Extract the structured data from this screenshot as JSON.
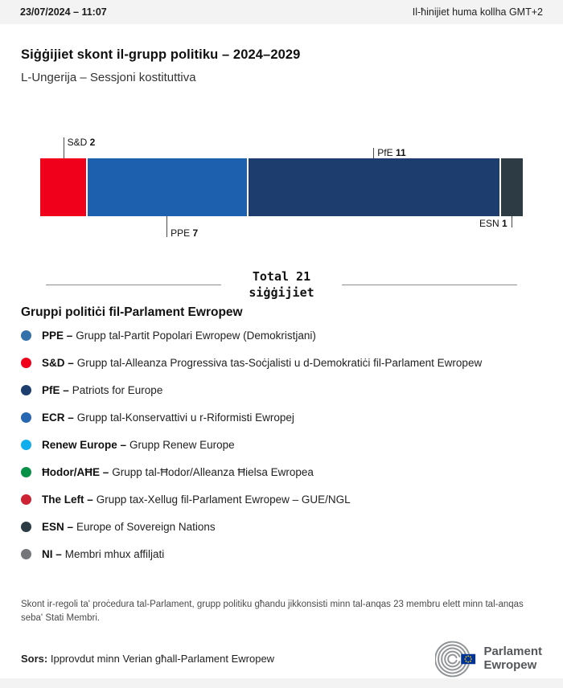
{
  "header": {
    "datetime": "23/07/2024 – 11:07",
    "timezone_note": "Il-ħinijiet huma kollha GMT+2"
  },
  "title": "Siġġijiet skont il-grupp politiku – 2024–2029",
  "subtitle": "L-Ungerija – Sessjoni kostituttiva",
  "chart_data": {
    "type": "bar",
    "stacked": true,
    "orientation": "horizontal",
    "title": "Siġġijiet skont il-grupp politiku – 2024–2029",
    "total": 21,
    "total_label": "Total 21",
    "total_sublabel": "siġġijiet",
    "categories": [
      "S&D",
      "PPE",
      "PfE",
      "ESN"
    ],
    "values": [
      2,
      7,
      11,
      1
    ],
    "segments": [
      {
        "group": "S&D",
        "seats": 2,
        "color": "#f0001b",
        "label_side": "above",
        "tick": 26,
        "align": "left"
      },
      {
        "group": "PPE",
        "seats": 7,
        "color": "#1c60ae",
        "label_side": "below",
        "tick": 26,
        "align": "left"
      },
      {
        "group": "PfE",
        "seats": 11,
        "color": "#1d3d6f",
        "label_side": "above",
        "tick": 13,
        "align": "left"
      },
      {
        "group": "ESN",
        "seats": 1,
        "color": "#2c3b44",
        "label_side": "below",
        "tick": 14,
        "align": "right"
      }
    ]
  },
  "legend": {
    "heading": "Gruppi politiċi fil-Parlament Ewropew",
    "items": [
      {
        "abbr": "PPE –",
        "name": "Grupp tal-Partit Popolari Ewropew (Demokristjani)",
        "color": "#3470a9"
      },
      {
        "abbr": "S&D –",
        "name": "Grupp tal-Alleanza Progressiva tas-Soċjalisti u d-Demokratiċi fil-Parlament Ewropew",
        "color": "#f0001b"
      },
      {
        "abbr": "PfE –",
        "name": "Patriots for Europe",
        "color": "#1d3d6f"
      },
      {
        "abbr": "ECR –",
        "name": "Grupp tal-Konservattivi u r-Riformisti Ewropej",
        "color": "#2767b1"
      },
      {
        "abbr": "Renew Europe –",
        "name": "Grupp Renew Europe",
        "color": "#10aeec"
      },
      {
        "abbr": "Ħodor/AĦE –",
        "name": "Grupp tal-Ħodor/Alleanza Ħielsa Ewropea",
        "color": "#089247"
      },
      {
        "abbr": "The Left –",
        "name": "Grupp tax-Xellug fil-Parlament Ewropew – GUE/NGL",
        "color": "#cc2233"
      },
      {
        "abbr": "ESN –",
        "name": "Europe of Sovereign Nations",
        "color": "#2c3b44"
      },
      {
        "abbr": "NI –",
        "name": "Membri mhux affiljati",
        "color": "#757679"
      }
    ]
  },
  "footnote": "Skont ir-regoli ta' proċedura tal-Parlament, grupp politiku għandu jikkonsisti minn tal-anqas 23 membru elett minn tal-anqas seba' Stati Membri.",
  "source": {
    "label": "Sors:",
    "text": "Ipprovdut minn Verian għall-Parlament Ewropew"
  },
  "logo": {
    "line1": "Parlament",
    "line2": "Ewropew"
  },
  "colors": {
    "topbar_bg": "#f3f3f3",
    "flag_blue": "#003399",
    "flag_stars": "#ffcc00",
    "logo_gray": "#909497"
  }
}
